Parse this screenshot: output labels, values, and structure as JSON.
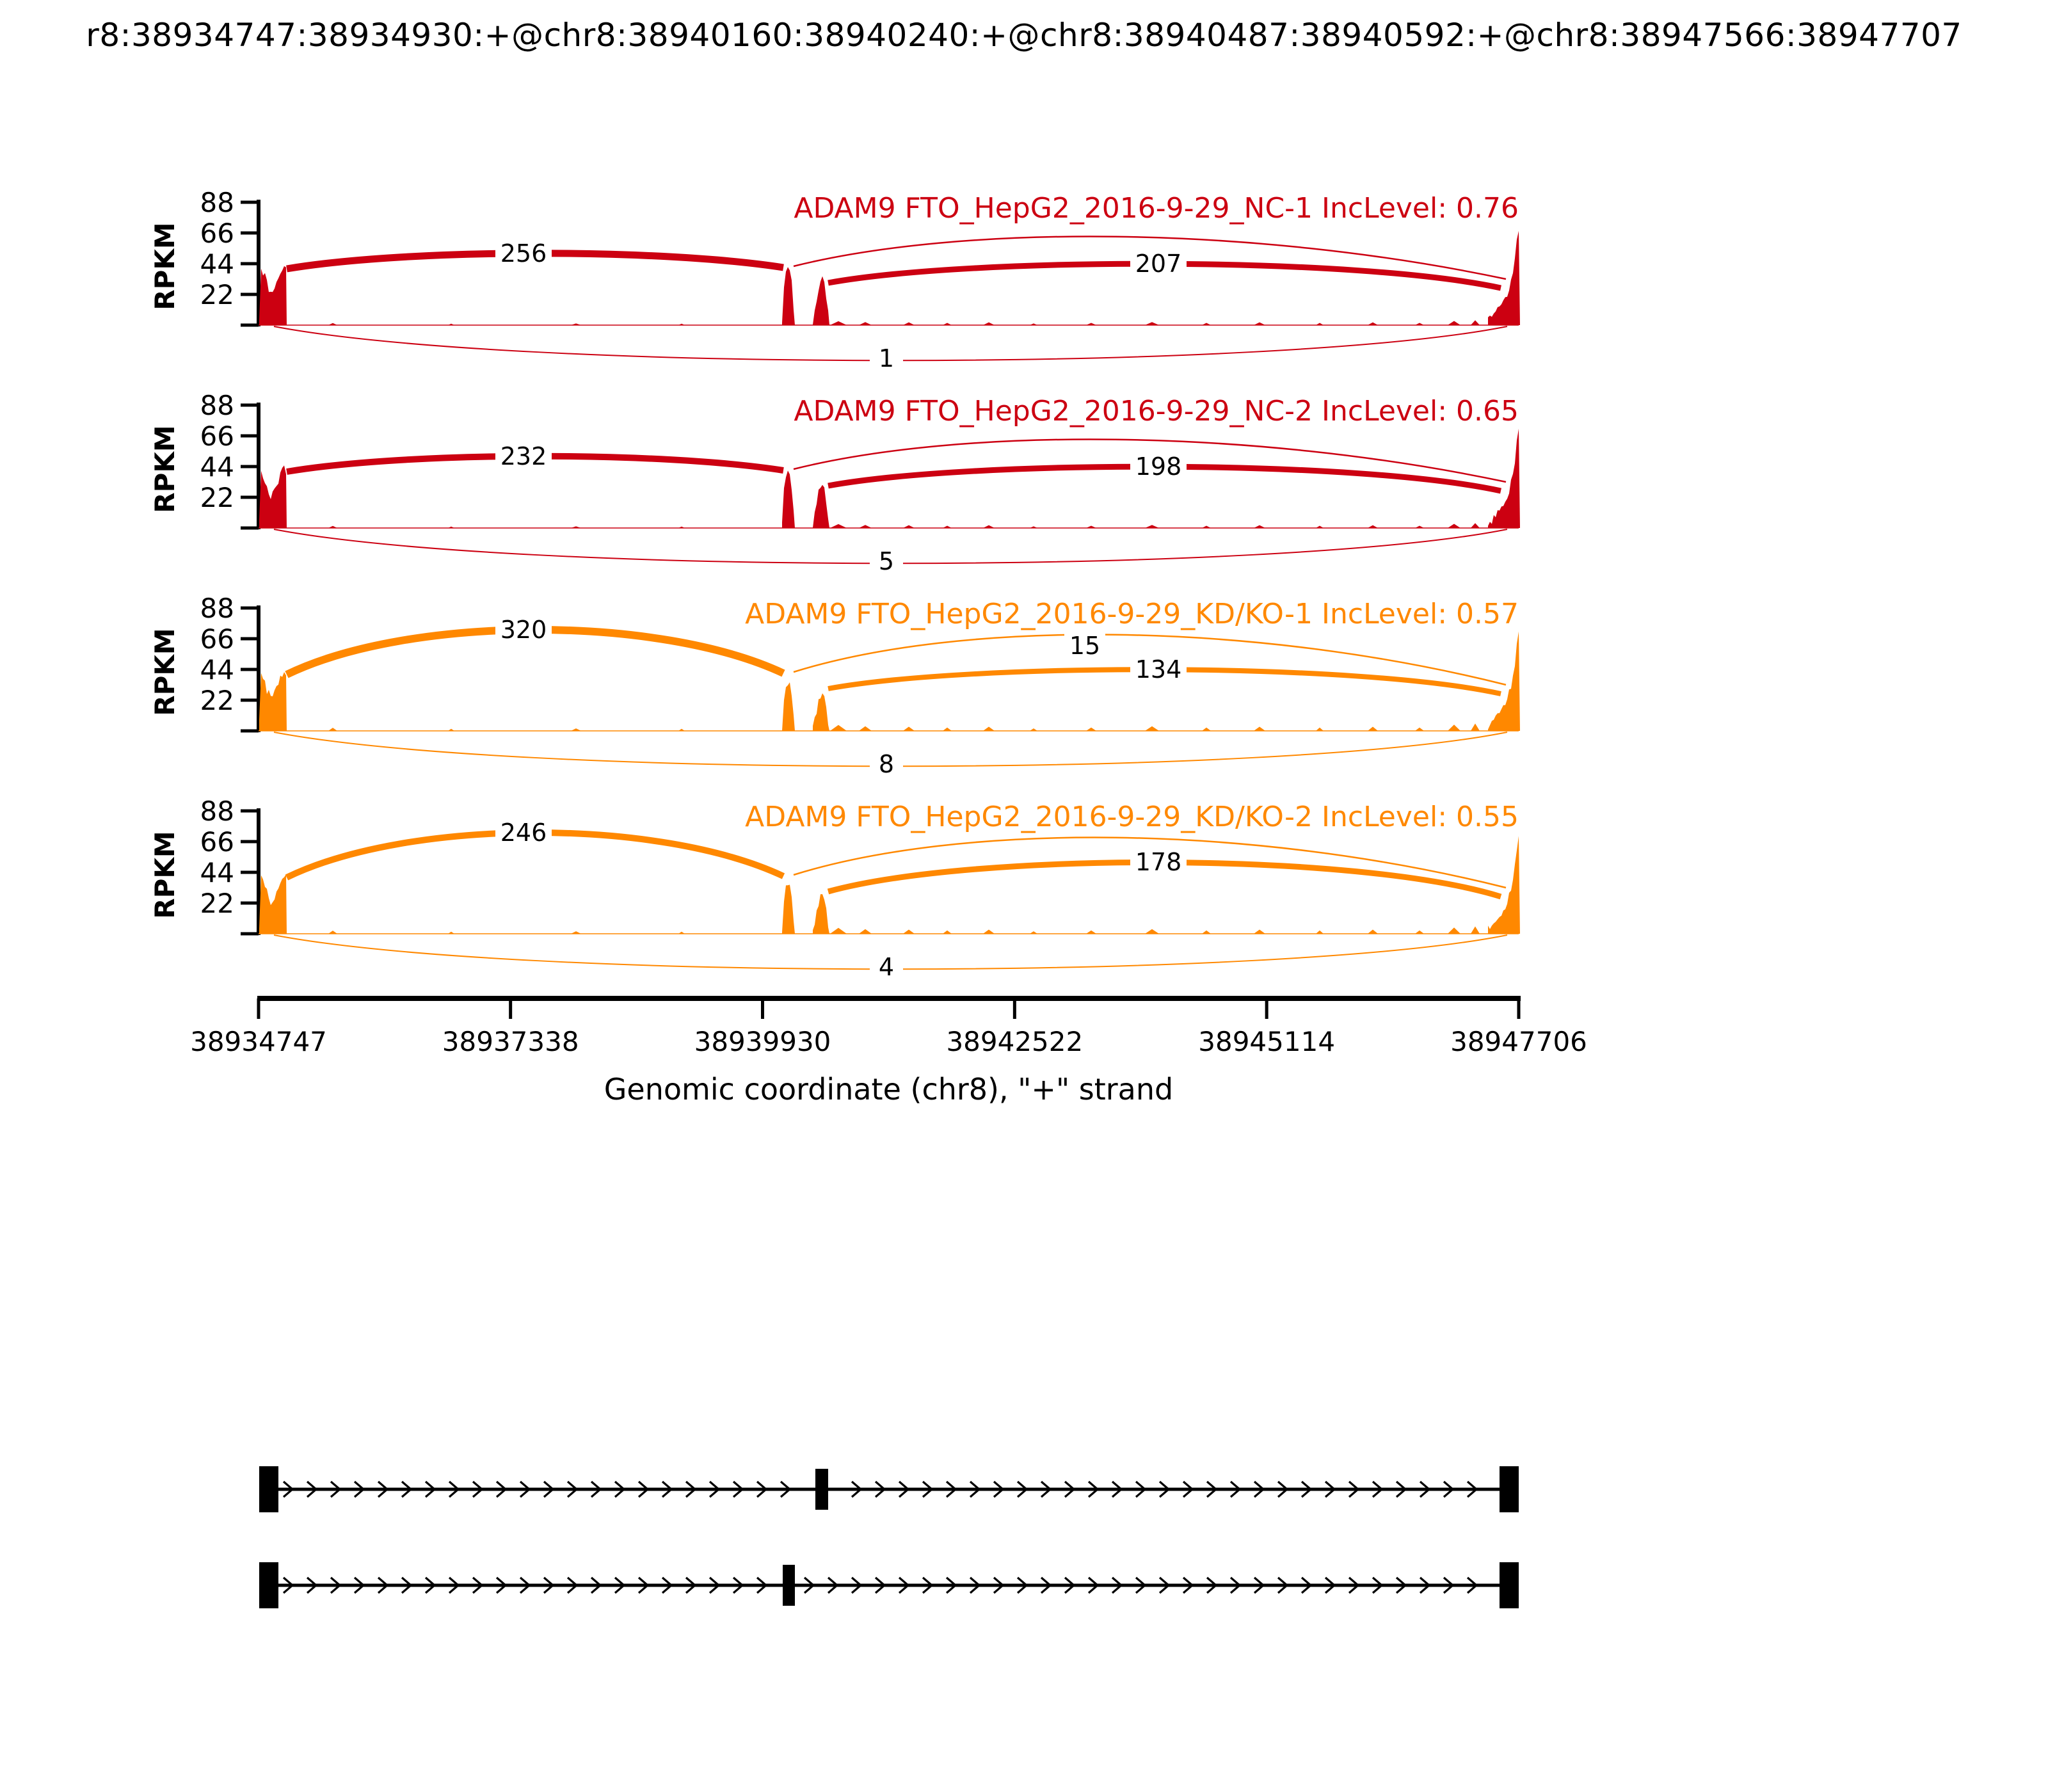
{
  "header": {
    "title": "r8:38934747:38934930:+@chr8:38940160:38940240:+@chr8:38940487:38940592:+@chr8:38947566:38947707"
  },
  "axis": {
    "ylabel": "RPKM",
    "yticks": [
      "22",
      "44",
      "66",
      "88"
    ],
    "xticks": [
      "38934747",
      "38937338",
      "38939930",
      "38942522",
      "38945114",
      "38947706"
    ],
    "xlabel": "Genomic coordinate (chr8), \"+\" strand"
  },
  "colors": {
    "red": "#CC0011",
    "orange": "#FF8800",
    "black": "#000000"
  },
  "tracks": [
    {
      "title": "ADAM9 FTO_HepG2_2016-9-29_NC-1 IncLevel: 0.76",
      "color": "#CC0011",
      "junction_left": "256",
      "junction_right": "207",
      "junction_thin": "",
      "junction_bottom": "1"
    },
    {
      "title": "ADAM9 FTO_HepG2_2016-9-29_NC-2 IncLevel: 0.65",
      "color": "#CC0011",
      "junction_left": "232",
      "junction_right": "198",
      "junction_thin": "",
      "junction_bottom": "5"
    },
    {
      "title": "ADAM9 FTO_HepG2_2016-9-29_KD/KO-1 IncLevel: 0.57",
      "color": "#FF8800",
      "junction_left": "320",
      "junction_right": "134",
      "junction_thin": "15",
      "junction_bottom": "8"
    },
    {
      "title": "ADAM9 FTO_HepG2_2016-9-29_KD/KO-2 IncLevel: 0.55",
      "color": "#FF8800",
      "junction_left": "246",
      "junction_right": "178",
      "junction_thin": "",
      "junction_bottom": "4"
    }
  ],
  "chart_data": {
    "type": "sashimi",
    "title": "r8:38934747:38934930:+@chr8:38940160:38940240:+@chr8:38940487:38940592:+@chr8:38947566:38947707",
    "gene": "ADAM9",
    "event_type": "MXE",
    "xlabel": "Genomic coordinate (chr8), \"+\" strand",
    "ylabel": "RPKM",
    "y_ticks": [
      22,
      44,
      66,
      88
    ],
    "x_ticks": [
      38934747,
      38937338,
      38939930,
      38942522,
      38945114,
      38947706
    ],
    "x_range": [
      38934747,
      38947706
    ],
    "exons_bp": {
      "upstream": [
        38934747,
        38934930
      ],
      "exon_A": [
        38940160,
        38940240
      ],
      "exon_B": [
        38940487,
        38940592
      ],
      "downstream": [
        38947566,
        38947707
      ]
    },
    "isoforms": [
      {
        "exons": [
          "upstream",
          "exon_B",
          "downstream"
        ]
      },
      {
        "exons": [
          "upstream",
          "exon_A",
          "downstream"
        ]
      }
    ],
    "samples": [
      {
        "name": "FTO_HepG2_2016-9-29_NC-1",
        "inc_level": 0.76,
        "color": "#CC0011",
        "junction_counts": {
          "upstream_to_exonA": 256,
          "exonB_to_downstream": 207,
          "exonA_to_downstream": null,
          "upstream_to_downstream": 1
        }
      },
      {
        "name": "FTO_HepG2_2016-9-29_NC-2",
        "inc_level": 0.65,
        "color": "#CC0011",
        "junction_counts": {
          "upstream_to_exonA": 232,
          "exonB_to_downstream": 198,
          "exonA_to_downstream": null,
          "upstream_to_downstream": 5
        }
      },
      {
        "name": "FTO_HepG2_2016-9-29_KD/KO-1",
        "inc_level": 0.57,
        "color": "#FF8800",
        "junction_counts": {
          "upstream_to_exonA": 320,
          "exonB_to_downstream": 134,
          "exonA_to_downstream": 15,
          "upstream_to_downstream": 8
        }
      },
      {
        "name": "FTO_HepG2_2016-9-29_KD/KO-2",
        "inc_level": 0.55,
        "color": "#FF8800",
        "junction_counts": {
          "upstream_to_exonA": 246,
          "exonB_to_downstream": 178,
          "exonA_to_downstream": null,
          "upstream_to_downstream": 4
        }
      }
    ]
  }
}
